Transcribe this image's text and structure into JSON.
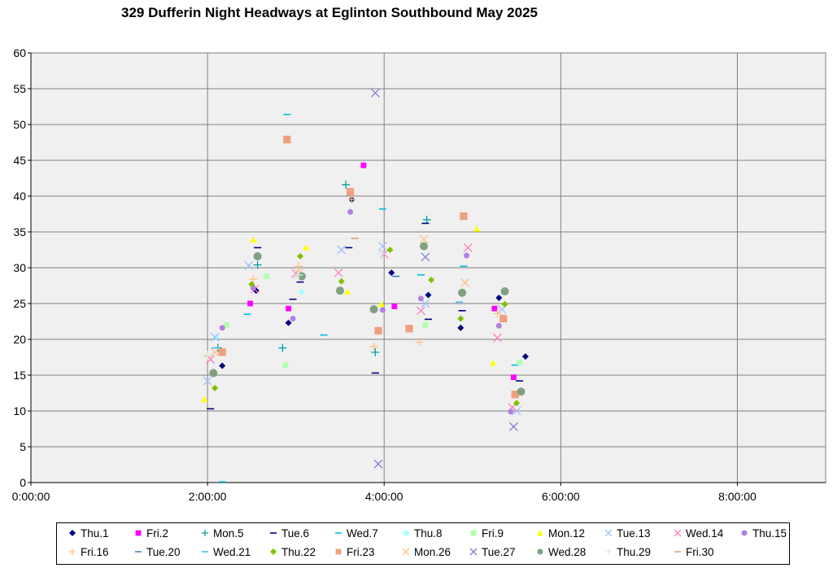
{
  "chart_data": {
    "type": "scatter",
    "title": "329 Dufferin Night Headways at Eglinton Southbound May 2025",
    "xlabel": "",
    "ylabel": "",
    "x_ticks": [
      "0:00:00",
      "2:00:00",
      "4:00:00",
      "6:00:00",
      "8:00:00"
    ],
    "xlim": [
      "0:00:00",
      "9:00:00"
    ],
    "ylim": [
      0,
      60
    ],
    "y_ticks": [
      0,
      5,
      10,
      15,
      20,
      25,
      30,
      35,
      40,
      45,
      50,
      55,
      60
    ],
    "grid": true,
    "legend_position": "bottom",
    "series": [
      {
        "name": "Thu.1",
        "marker": "diamond",
        "color": "#000080",
        "points": [
          [
            "2:10:00",
            16.3
          ],
          [
            "2:33:00",
            26.8
          ],
          [
            "2:55:00",
            22.3
          ],
          [
            "3:38:00",
            39.5
          ],
          [
            "4:05:00",
            29.3
          ],
          [
            "4:30:00",
            26.2
          ],
          [
            "4:52:00",
            21.6
          ],
          [
            "5:18:00",
            25.8
          ],
          [
            "5:36:00",
            17.6
          ]
        ]
      },
      {
        "name": "Fri.2",
        "marker": "square",
        "color": "#ff00ff",
        "points": [
          [
            "2:29:00",
            25.0
          ],
          [
            "2:55:00",
            24.3
          ],
          [
            "3:46:00",
            44.3
          ],
          [
            "4:07:00",
            24.6
          ],
          [
            "5:15:00",
            24.3
          ],
          [
            "5:28:00",
            14.7
          ]
        ]
      },
      {
        "name": "Mon.5",
        "marker": "plus",
        "color": "#00a0a0",
        "points": [
          [
            "2:07:00",
            18.8
          ],
          [
            "2:34:00",
            30.4
          ],
          [
            "2:51:00",
            18.8
          ],
          [
            "3:34:00",
            41.6
          ],
          [
            "3:54:00",
            18.2
          ],
          [
            "4:29:00",
            36.7
          ]
        ]
      },
      {
        "name": "Tue.6",
        "marker": "dash",
        "color": "#000080",
        "points": [
          [
            "2:02:00",
            10.3
          ],
          [
            "2:34:00",
            32.8
          ],
          [
            "2:58:00",
            25.6
          ],
          [
            "3:03:00",
            28.0
          ],
          [
            "3:36:00",
            32.8
          ],
          [
            "3:54:00",
            15.3
          ],
          [
            "4:28:00",
            36.2
          ],
          [
            "4:30:00",
            22.8
          ],
          [
            "4:53:00",
            24.0
          ],
          [
            "5:32:00",
            14.2
          ]
        ]
      },
      {
        "name": "Wed.7",
        "marker": "dash",
        "color": "#00c0e0",
        "points": [
          [
            "2:10:00",
            0.1
          ],
          [
            "2:27:00",
            23.5
          ],
          [
            "2:54:00",
            51.4
          ],
          [
            "3:19:00",
            20.6
          ],
          [
            "3:59:00",
            38.2
          ],
          [
            "4:25:00",
            29.0
          ],
          [
            "4:54:00",
            30.2
          ],
          [
            "5:29:00",
            16.4
          ]
        ]
      },
      {
        "name": "Thu.8",
        "marker": "diamond",
        "color": "#a0ffff",
        "points": [
          [
            "2:06:00",
            20.3
          ],
          [
            "3:04:00",
            26.6
          ],
          [
            "5:21:00",
            26.8
          ]
        ]
      },
      {
        "name": "Fri.9",
        "marker": "square",
        "color": "#b0ffb0",
        "points": [
          [
            "2:13:00",
            22.0
          ],
          [
            "2:40:00",
            28.8
          ],
          [
            "2:53:00",
            16.4
          ],
          [
            "4:28:00",
            22.0
          ],
          [
            "5:32:00",
            16.8
          ]
        ]
      },
      {
        "name": "Mon.12",
        "marker": "triangle",
        "color": "#ffff00",
        "points": [
          [
            "1:58:00",
            11.6
          ],
          [
            "2:31:00",
            33.9
          ],
          [
            "3:07:00",
            32.8
          ],
          [
            "3:35:00",
            26.6
          ],
          [
            "3:58:00",
            24.9
          ],
          [
            "5:03:00",
            35.4
          ],
          [
            "5:14:00",
            16.7
          ]
        ]
      },
      {
        "name": "Tue.13",
        "marker": "x",
        "color": "#a0c0ff",
        "points": [
          [
            "2:00:00",
            14.2
          ],
          [
            "2:05:00",
            20.3
          ],
          [
            "2:28:00",
            30.3
          ],
          [
            "3:31:00",
            32.5
          ],
          [
            "3:59:00",
            33.0
          ],
          [
            "4:28:00",
            25.0
          ],
          [
            "5:20:00",
            24.2
          ],
          [
            "5:30:00",
            10.0
          ]
        ]
      },
      {
        "name": "Wed.14",
        "marker": "x",
        "color": "#ff80c0",
        "points": [
          [
            "2:02:00",
            17.2
          ],
          [
            "2:32:00",
            27.0
          ],
          [
            "3:00:00",
            29.2
          ],
          [
            "3:29:00",
            29.3
          ],
          [
            "4:00:00",
            31.9
          ],
          [
            "4:25:00",
            24.0
          ],
          [
            "4:57:00",
            32.8
          ],
          [
            "5:17:00",
            20.2
          ],
          [
            "5:27:00",
            10.5
          ]
        ]
      },
      {
        "name": "Thu.15",
        "marker": "circle",
        "color": "#b080e0",
        "points": [
          [
            "2:10:00",
            21.6
          ],
          [
            "2:31:00",
            27.2
          ],
          [
            "2:58:00",
            22.9
          ],
          [
            "3:37:00",
            37.8
          ],
          [
            "3:59:00",
            24.1
          ],
          [
            "4:25:00",
            25.7
          ],
          [
            "4:56:00",
            31.7
          ],
          [
            "5:18:00",
            21.9
          ],
          [
            "5:26:00",
            9.9
          ]
        ]
      },
      {
        "name": "Fri.16",
        "marker": "plus",
        "color": "#ffc080",
        "points": [
          [
            "2:00:00",
            17.6
          ],
          [
            "2:31:00",
            28.4
          ],
          [
            "3:02:00",
            30.2
          ],
          [
            "3:38:00",
            39.5
          ],
          [
            "3:53:00",
            19.0
          ],
          [
            "4:24:00",
            19.6
          ],
          [
            "5:17:00",
            23.6
          ]
        ]
      },
      {
        "name": "Tue.20",
        "marker": "dash",
        "color": "#4080c0",
        "points": [
          [
            "4:08:00",
            28.8
          ]
        ]
      },
      {
        "name": "Wed.21",
        "marker": "dash",
        "color": "#40c0ff",
        "points": [
          [
            "2:05:00",
            18.8
          ],
          [
            "4:51:00",
            25.2
          ]
        ]
      },
      {
        "name": "Thu.22",
        "marker": "diamond",
        "color": "#80c000",
        "points": [
          [
            "2:05:00",
            13.2
          ],
          [
            "2:30:00",
            27.7
          ],
          [
            "3:03:00",
            31.6
          ],
          [
            "3:31:00",
            28.1
          ],
          [
            "4:04:00",
            32.5
          ],
          [
            "4:32:00",
            28.3
          ],
          [
            "4:52:00",
            22.9
          ],
          [
            "5:22:00",
            24.9
          ],
          [
            "5:30:00",
            11.1
          ]
        ]
      },
      {
        "name": "Fri.23",
        "marker": "square",
        "color": "#f0a080",
        "points": [
          [
            "2:10:00",
            18.2
          ],
          [
            "2:54:00",
            47.9
          ],
          [
            "3:37:00",
            40.6
          ],
          [
            "3:56:00",
            21.2
          ],
          [
            "4:17:00",
            21.5
          ],
          [
            "4:54:00",
            37.2
          ],
          [
            "5:21:00",
            22.9
          ],
          [
            "5:29:00",
            12.3
          ]
        ]
      },
      {
        "name": "Mon.26",
        "marker": "x",
        "color": "#ffc080",
        "points": [
          [
            "2:05:00",
            18.2
          ],
          [
            "3:02:00",
            29.2
          ],
          [
            "4:27:00",
            34.0
          ],
          [
            "4:55:00",
            27.9
          ]
        ]
      },
      {
        "name": "Tue.27",
        "marker": "x",
        "color": "#8080d0",
        "points": [
          [
            "3:54:00",
            54.4
          ],
          [
            "3:56:00",
            2.6
          ],
          [
            "4:28:00",
            31.5
          ],
          [
            "5:28:00",
            7.8
          ]
        ]
      },
      {
        "name": "Wed.28",
        "marker": "circle",
        "color": "#80a080",
        "points": [
          [
            "2:04:00",
            15.3
          ],
          [
            "2:34:00",
            31.6
          ],
          [
            "3:04:00",
            28.8
          ],
          [
            "3:30:00",
            26.8
          ],
          [
            "3:53:00",
            24.2
          ],
          [
            "4:27:00",
            33.0
          ],
          [
            "4:53:00",
            26.5
          ],
          [
            "5:22:00",
            26.7
          ],
          [
            "5:33:00",
            12.7
          ]
        ]
      },
      {
        "name": "Thu.29",
        "marker": "plus",
        "color": "#d0f0f0",
        "points": [
          [
            "2:00:00",
            17.8
          ],
          [
            "3:02:00",
            29.0
          ],
          [
            "3:58:00",
            32.0
          ]
        ]
      },
      {
        "name": "Fri.30",
        "marker": "dash",
        "color": "#e0a080",
        "points": [
          [
            "3:40:00",
            34.1
          ]
        ]
      }
    ]
  }
}
